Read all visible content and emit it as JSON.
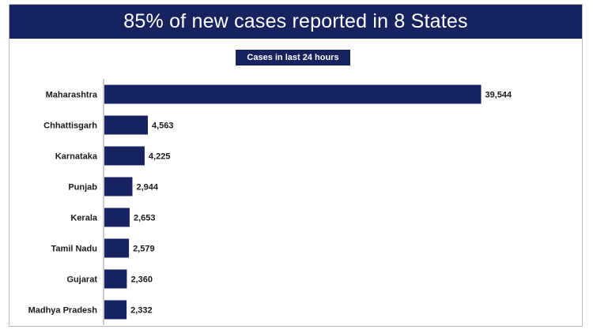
{
  "header": {
    "title": "85% of new cases reported in 8 States"
  },
  "colors": {
    "banner": "#16235e",
    "bar": "#16235e",
    "label_text": "#1a1a1a"
  },
  "chart_data": {
    "type": "bar",
    "orientation": "horizontal",
    "subtitle": "Cases in last 24 hours",
    "categories": [
      "Maharashtra",
      "Chhattisgarh",
      "Karnataka",
      "Punjab",
      "Kerala",
      "Tamil Nadu",
      "Gujarat",
      "Madhya Pradesh"
    ],
    "values": [
      39544,
      4563,
      4225,
      2944,
      2653,
      2579,
      2360,
      2332
    ],
    "value_labels": [
      "39,544",
      "4,563",
      "4,225",
      "2,944",
      "2,653",
      "2,579",
      "2,360",
      "2,332"
    ],
    "xlim": [
      0,
      40000
    ],
    "grid": false,
    "legend": "none"
  }
}
